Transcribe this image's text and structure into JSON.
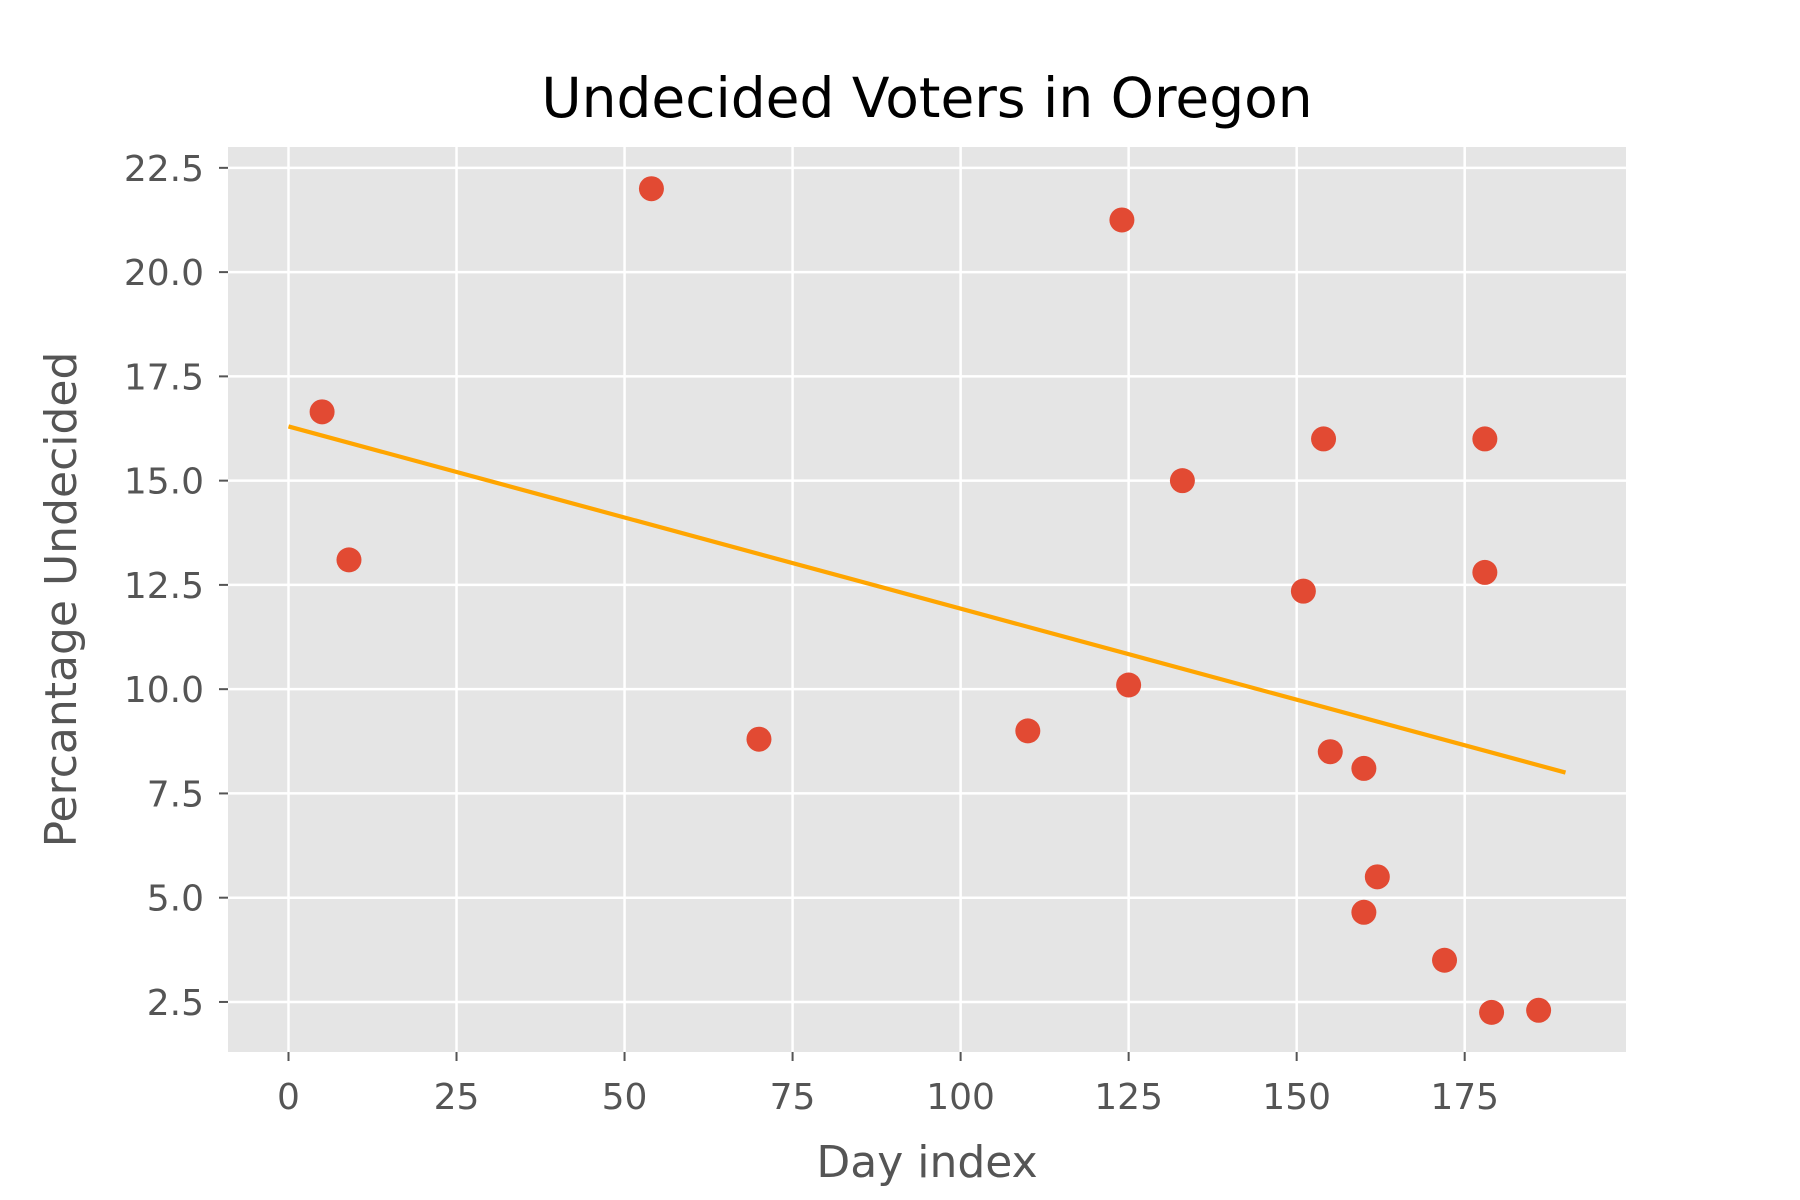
{
  "chart_data": {
    "type": "scatter",
    "title": "Undecided Voters in Oregon",
    "xlabel": "Day index",
    "ylabel": "Percantage Undecided",
    "xlim": [
      -9,
      199
    ],
    "ylim": [
      1.3,
      23.0
    ],
    "xticks": [
      0,
      25,
      50,
      75,
      100,
      125,
      150,
      175
    ],
    "yticks": [
      2.5,
      5.0,
      7.5,
      10.0,
      12.5,
      15.0,
      17.5,
      20.0,
      22.5
    ],
    "grid": true,
    "legend": "none",
    "colors": {
      "background": "#e5e5e5",
      "points": "#e24a33",
      "trend": "#ffa500"
    },
    "series": [
      {
        "type": "scatter",
        "points": [
          {
            "x": 5,
            "y": 16.65
          },
          {
            "x": 9,
            "y": 13.1
          },
          {
            "x": 54,
            "y": 22.0
          },
          {
            "x": 70,
            "y": 8.8
          },
          {
            "x": 110,
            "y": 9.0
          },
          {
            "x": 124,
            "y": 21.25
          },
          {
            "x": 125,
            "y": 10.1
          },
          {
            "x": 133,
            "y": 15.0
          },
          {
            "x": 151,
            "y": 12.35
          },
          {
            "x": 154,
            "y": 16.0
          },
          {
            "x": 155,
            "y": 8.5
          },
          {
            "x": 160,
            "y": 8.1
          },
          {
            "x": 160,
            "y": 4.65
          },
          {
            "x": 162,
            "y": 5.5
          },
          {
            "x": 172,
            "y": 3.5
          },
          {
            "x": 178,
            "y": 16.0
          },
          {
            "x": 178,
            "y": 12.8
          },
          {
            "x": 179,
            "y": 2.25
          },
          {
            "x": 186,
            "y": 2.3
          }
        ]
      },
      {
        "type": "line",
        "points": [
          {
            "x": 0,
            "y": 16.3
          },
          {
            "x": 190,
            "y": 8.0
          }
        ]
      }
    ]
  }
}
